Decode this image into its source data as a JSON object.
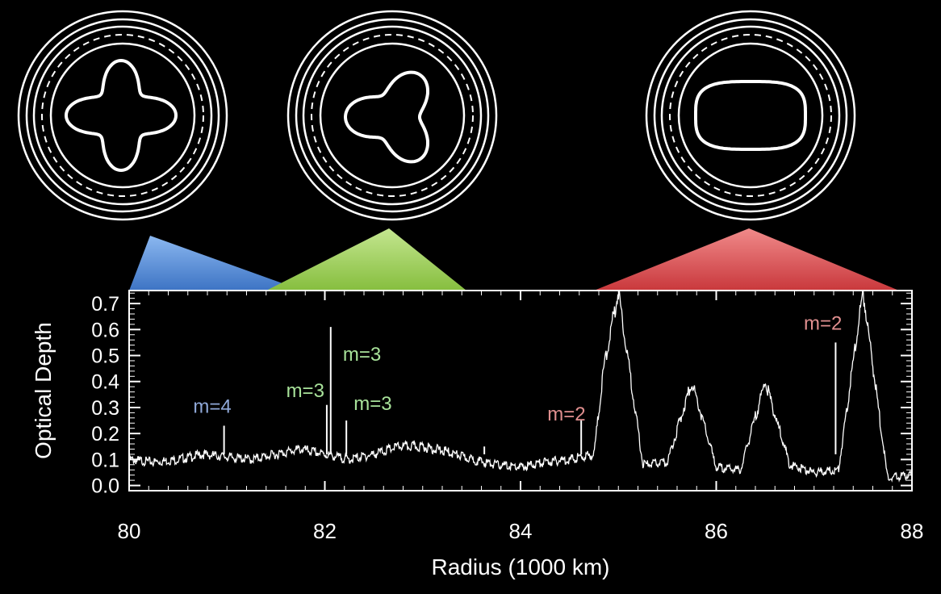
{
  "chart_data": {
    "type": "line",
    "title": "",
    "xlabel": "Radius (1000 km)",
    "ylabel": "Optical Depth",
    "xlim": [
      80,
      88
    ],
    "ylim": [
      -0.02,
      0.75
    ],
    "x_ticks": [
      80,
      82,
      84,
      86,
      88
    ],
    "y_ticks": [
      0.0,
      0.1,
      0.2,
      0.3,
      0.4,
      0.5,
      0.6,
      0.7
    ],
    "y_tick_labels": [
      "0.0",
      "0.1",
      "0.2",
      "0.3",
      "0.4",
      "0.5",
      "0.6",
      "0.7"
    ],
    "grid": false,
    "series": [
      {
        "color": "#ffffff",
        "x": [
          80.0,
          80.25,
          80.5,
          80.75,
          81.0,
          81.25,
          81.5,
          81.75,
          82.0,
          82.25,
          82.5,
          82.75,
          83.0,
          83.25,
          83.5,
          83.75,
          84.0,
          84.25,
          84.5,
          84.75,
          84.85,
          85.0,
          85.25,
          85.5,
          85.75,
          86.0,
          86.25,
          86.5,
          86.75,
          87.0,
          87.25,
          87.5,
          87.75,
          88.0
        ],
        "y": [
          0.1,
          0.09,
          0.1,
          0.12,
          0.11,
          0.1,
          0.12,
          0.14,
          0.12,
          0.1,
          0.12,
          0.15,
          0.15,
          0.13,
          0.1,
          0.08,
          0.07,
          0.09,
          0.1,
          0.12,
          0.45,
          0.75,
          0.08,
          0.09,
          0.4,
          0.07,
          0.06,
          0.4,
          0.08,
          0.05,
          0.06,
          0.75,
          0.03,
          0.04
        ]
      }
    ],
    "spikes": [
      {
        "x": 80.97,
        "y": 0.23
      },
      {
        "x": 82.02,
        "y": 0.31
      },
      {
        "x": 82.06,
        "y": 0.61
      },
      {
        "x": 82.22,
        "y": 0.25
      },
      {
        "x": 83.63,
        "y": 0.15
      },
      {
        "x": 84.62,
        "y": 0.25
      },
      {
        "x": 87.22,
        "y": 0.55
      }
    ],
    "annotations": [
      {
        "text": "m=4",
        "x": 80.85,
        "y": 0.28,
        "color": "#8fa8d8"
      },
      {
        "text": "m=3",
        "x": 81.8,
        "y": 0.34,
        "color": "#a8e29a"
      },
      {
        "text": "m=3",
        "x": 82.38,
        "y": 0.48,
        "color": "#a8e29a"
      },
      {
        "text": "m=3",
        "x": 82.49,
        "y": 0.29,
        "color": "#a8e29a"
      },
      {
        "text": "m=2",
        "x": 84.47,
        "y": 0.25,
        "color": "#e08f8f"
      },
      {
        "text": "m=2",
        "x": 87.09,
        "y": 0.6,
        "color": "#e08f8f"
      }
    ],
    "resonance_wedges": [
      {
        "mode": "m=4",
        "x_range": [
          80.0,
          81.8
        ],
        "color": "#4a86d4"
      },
      {
        "mode": "m=3",
        "x_range": [
          81.4,
          83.5
        ],
        "color": "#96cc4d"
      },
      {
        "mode": "m=2",
        "x_range": [
          84.8,
          87.85
        ],
        "color": "#d8484b"
      }
    ],
    "ring_shapes": [
      {
        "mode": "m=4",
        "lobes": 4
      },
      {
        "mode": "m=3",
        "lobes": 3
      },
      {
        "mode": "m=2",
        "lobes": 2
      }
    ]
  }
}
